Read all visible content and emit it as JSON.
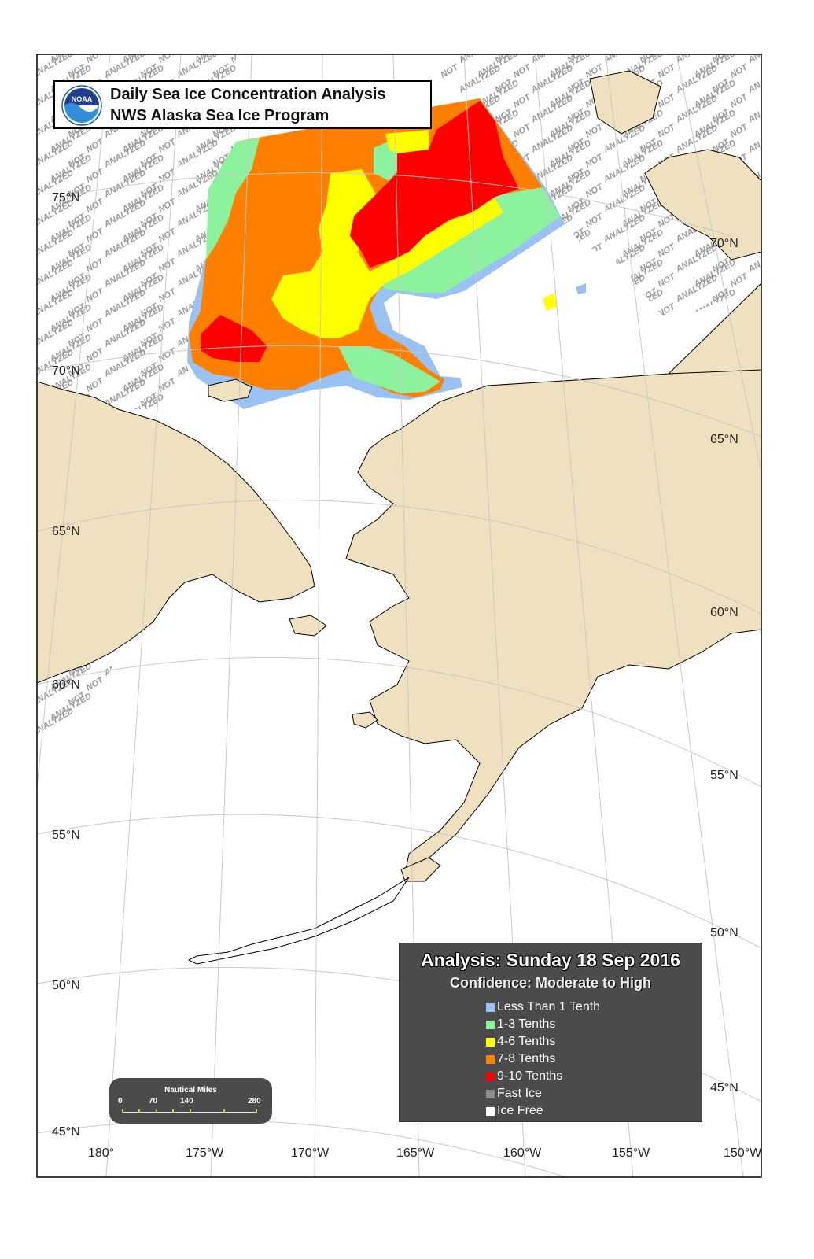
{
  "title": {
    "line1": "Daily Sea Ice Concentration Analysis",
    "line2": "NWS Alaska Sea Ice Program",
    "logo_text": "NOAA"
  },
  "not_analyzed_label": "NOT ANALYZED",
  "latitude_labels": [
    "75°N",
    "70°N",
    "65°N",
    "60°N",
    "55°N",
    "50°N",
    "45°N"
  ],
  "longitude_labels": [
    "180°",
    "175°W",
    "170°W",
    "165°W",
    "160°W",
    "155°W",
    "150°W"
  ],
  "legend": {
    "analysis": "Analysis: Sunday 18 Sep 2016",
    "confidence": "Confidence: Moderate to High",
    "items": [
      {
        "label": "Less Than 1 Tenth",
        "color": "#99c2f2"
      },
      {
        "label": "1-3 Tenths",
        "color": "#8cf29e"
      },
      {
        "label": "4-6 Tenths",
        "color": "#ffff00"
      },
      {
        "label": "7-8 Tenths",
        "color": "#ff7f00"
      },
      {
        "label": "9-10 Tenths",
        "color": "#ff0000"
      },
      {
        "label": "Fast Ice",
        "color": "#8c8c8c"
      },
      {
        "label": "Ice Free",
        "color": "#ffffff"
      }
    ]
  },
  "scale_bar": {
    "title": "Nautical Miles",
    "ticks": [
      "0",
      "70",
      "140",
      "280"
    ]
  },
  "colors": {
    "land": "#efe1bf",
    "water": "#ffffff",
    "grid": "#c8c8c8"
  }
}
